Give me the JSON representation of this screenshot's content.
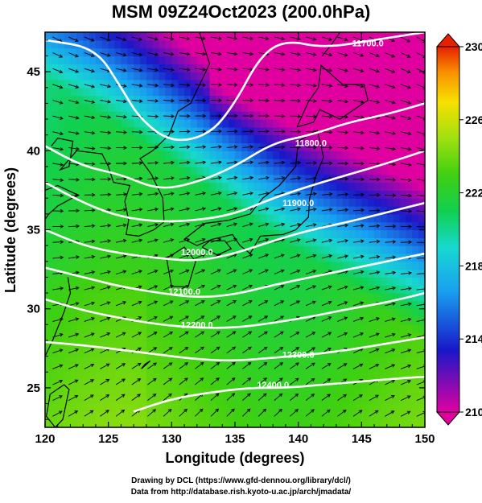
{
  "title": "MSM 09Z24Oct2023 (200.0hPa)",
  "credits": {
    "line1": "Drawing by DCL (https://www.gfd-dennou.org/library/dcl/)",
    "line2": "Data from http://database.rish.kyoto-u.ac.jp/arch/jmadata/"
  },
  "chart_data": {
    "type": "heatmap",
    "title": "MSM 09Z24Oct2023 (200.0hPa)",
    "xlabel": "Longitude (degrees)",
    "ylabel": "Latitude  (degrees)",
    "xlim": [
      120,
      150
    ],
    "ylim": [
      22.5,
      47.5
    ],
    "xticks": [
      120,
      125,
      130,
      135,
      140,
      145,
      150
    ],
    "yticks": [
      25,
      30,
      35,
      40,
      45
    ],
    "colorbar": {
      "min": 210,
      "max": 230,
      "ticks": [
        210,
        214,
        218,
        222,
        226,
        230
      ],
      "colors": [
        "#e000a0",
        "#1818c8",
        "#18a0f0",
        "#18d8d0",
        "#10d050",
        "#40d010",
        "#a0e010",
        "#f8e000",
        "#f89000",
        "#e82000"
      ]
    },
    "contours": {
      "variable": "geopotential height",
      "levels": [
        {
          "value": 11700,
          "label": "11700.0",
          "points": [
            [
              120.0,
              47.0
            ],
            [
              124.0,
              46.5
            ],
            [
              126.0,
              44.0
            ],
            [
              127.5,
              42.0
            ],
            [
              130.0,
              40.5
            ],
            [
              133.0,
              41.0
            ],
            [
              135.0,
              43.0
            ],
            [
              137.0,
              46.0
            ],
            [
              139.0,
              47.0
            ],
            [
              142.0,
              46.5
            ],
            [
              146.0,
              47.0
            ],
            [
              150.0,
              47.5
            ]
          ]
        },
        {
          "value": 11800,
          "label": "11800.0",
          "points": [
            [
              120.0,
              40.3
            ],
            [
              123.0,
              39.0
            ],
            [
              126.0,
              38.5
            ],
            [
              129.0,
              37.5
            ],
            [
              132.0,
              38.0
            ],
            [
              135.0,
              39.0
            ],
            [
              138.0,
              40.5
            ],
            [
              141.0,
              41.0
            ],
            [
              144.0,
              41.8
            ],
            [
              147.0,
              42.3
            ],
            [
              150.0,
              43.0
            ]
          ]
        },
        {
          "value": 11900,
          "label": "11900.0",
          "points": [
            [
              120.0,
              38.0
            ],
            [
              123.0,
              36.7
            ],
            [
              126.0,
              35.8
            ],
            [
              129.0,
              35.5
            ],
            [
              132.0,
              35.6
            ],
            [
              135.0,
              36.0
            ],
            [
              138.0,
              37.0
            ],
            [
              141.0,
              37.8
            ],
            [
              144.0,
              38.5
            ],
            [
              147.0,
              39.2
            ],
            [
              150.0,
              40.0
            ]
          ]
        },
        {
          "value": 12000,
          "label": "12000.0",
          "points": [
            [
              120.0,
              35.0
            ],
            [
              123.0,
              34.0
            ],
            [
              126.0,
              33.5
            ],
            [
              129.0,
              33.2
            ],
            [
              132.0,
              33.0
            ],
            [
              135.0,
              33.5
            ],
            [
              138.0,
              34.3
            ],
            [
              141.0,
              35.0
            ],
            [
              144.0,
              35.5
            ],
            [
              147.0,
              36.1
            ],
            [
              150.0,
              36.7
            ]
          ]
        },
        {
          "value": 12100,
          "label": "12100.0",
          "points": [
            [
              120.0,
              32.6
            ],
            [
              123.0,
              32.0
            ],
            [
              126.0,
              31.4
            ],
            [
              129.0,
              31.0
            ],
            [
              132.0,
              30.7
            ],
            [
              135.0,
              30.9
            ],
            [
              138.0,
              31.5
            ],
            [
              141.0,
              32.0
            ],
            [
              144.0,
              32.5
            ],
            [
              147.0,
              33.0
            ],
            [
              150.0,
              33.5
            ]
          ]
        },
        {
          "value": 12200,
          "label": "12200.0",
          "points": [
            [
              120.0,
              30.6
            ],
            [
              123.0,
              29.9
            ],
            [
              126.0,
              29.4
            ],
            [
              129.0,
              29.0
            ],
            [
              132.0,
              28.8
            ],
            [
              135.0,
              28.8
            ],
            [
              138.0,
              29.1
            ],
            [
              141.0,
              29.5
            ],
            [
              144.0,
              30.0
            ],
            [
              147.0,
              30.4
            ],
            [
              150.0,
              31.0
            ]
          ]
        },
        {
          "value": 12300,
          "label": "12300.0",
          "points": [
            [
              120.0,
              27.9
            ],
            [
              123.0,
              27.7
            ],
            [
              126.0,
              27.4
            ],
            [
              129.0,
              27.1
            ],
            [
              132.0,
              26.8
            ],
            [
              135.0,
              26.7
            ],
            [
              138.0,
              26.9
            ],
            [
              141.0,
              27.1
            ],
            [
              144.0,
              27.4
            ],
            [
              147.0,
              27.8
            ],
            [
              150.0,
              28.2
            ]
          ]
        },
        {
          "value": 12400,
          "label": "12400.0",
          "points": [
            [
              127.0,
              23.5
            ],
            [
              130.0,
              24.3
            ],
            [
              133.0,
              24.7
            ],
            [
              136.0,
              25.0
            ],
            [
              139.0,
              25.0
            ],
            [
              142.0,
              25.2
            ],
            [
              145.0,
              25.4
            ],
            [
              148.0,
              25.6
            ],
            [
              150.0,
              25.7
            ]
          ]
        }
      ],
      "label_positions": [
        [
          145.5,
          46.8
        ],
        [
          141.0,
          40.5
        ],
        [
          140.0,
          36.7
        ],
        [
          132.0,
          33.6
        ],
        [
          131.0,
          31.1
        ],
        [
          132.0,
          29.0
        ],
        [
          140.0,
          27.1
        ],
        [
          138.0,
          25.2
        ]
      ]
    }
  }
}
